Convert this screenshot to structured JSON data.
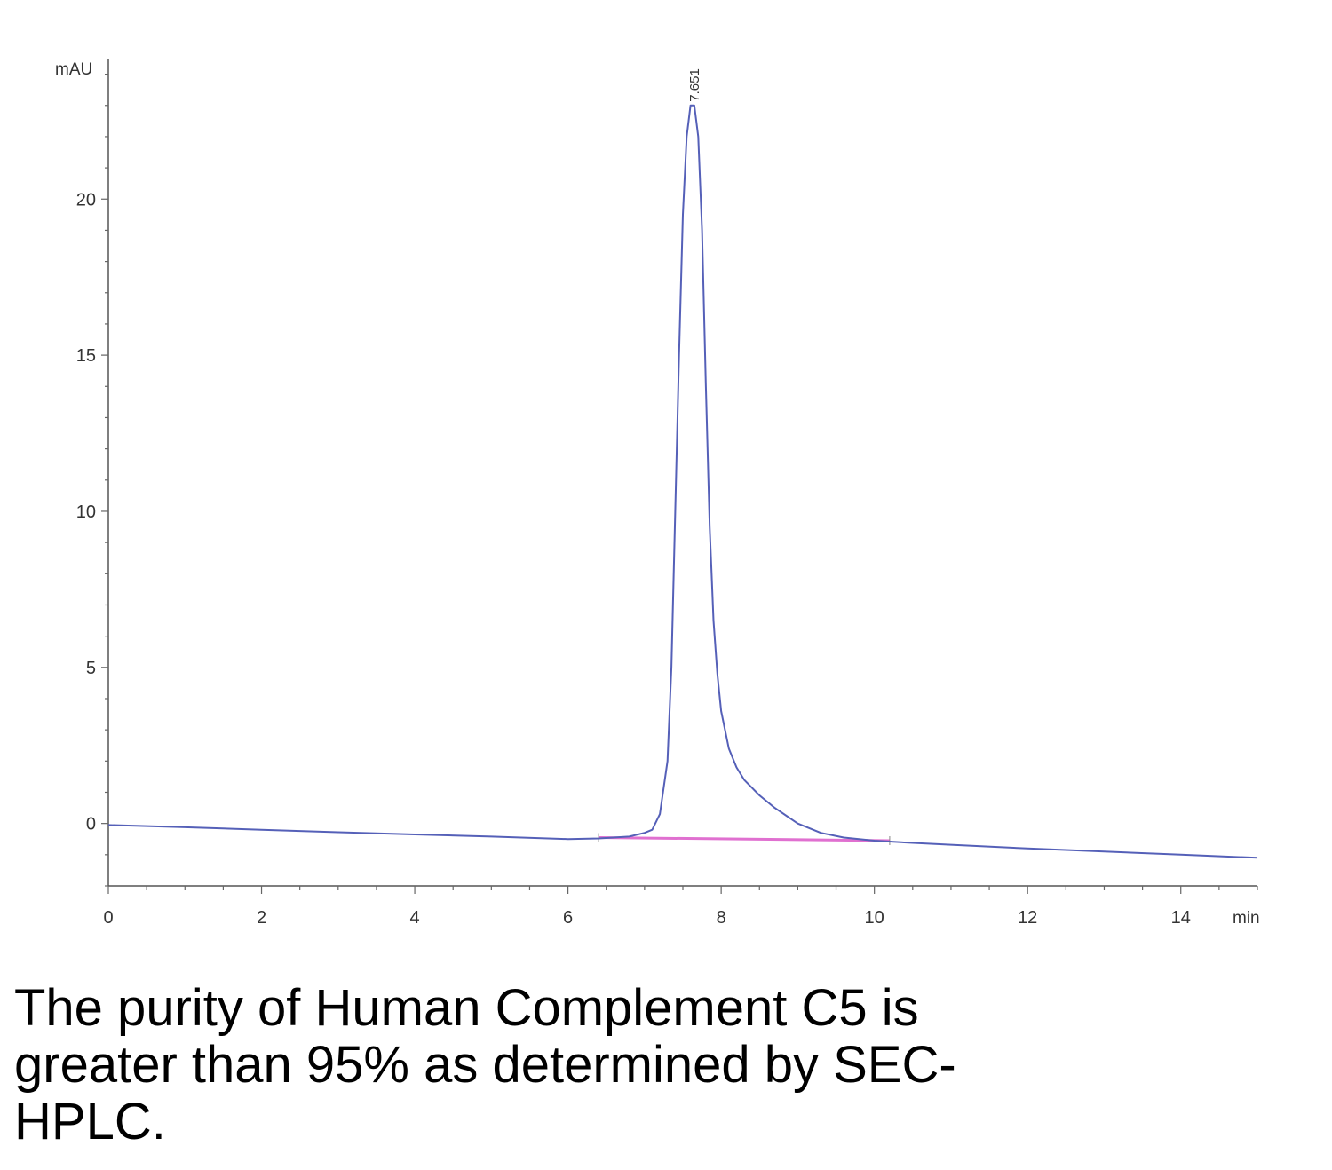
{
  "chart_data": {
    "type": "line",
    "title": "",
    "xlabel": "",
    "ylabel": "",
    "x_unit": "min",
    "y_unit": "mAU",
    "xlim": [
      0,
      15
    ],
    "ylim": [
      -2,
      24.5
    ],
    "x_ticks": [
      0,
      2,
      4,
      6,
      8,
      10,
      12,
      14
    ],
    "y_ticks": [
      0,
      5,
      10,
      15,
      20
    ],
    "grid": false,
    "peak_label": "7.651",
    "series": [
      {
        "color": "#5560b8",
        "x": [
          0,
          1,
          2,
          3,
          4,
          5,
          6,
          6.4,
          6.8,
          7.0,
          7.1,
          7.2,
          7.3,
          7.35,
          7.4,
          7.45,
          7.5,
          7.55,
          7.6,
          7.65,
          7.7,
          7.75,
          7.8,
          7.85,
          7.9,
          7.95,
          8.0,
          8.1,
          8.2,
          8.3,
          8.5,
          8.7,
          9.0,
          9.3,
          9.6,
          10.0,
          10.5,
          11,
          12,
          13,
          14,
          15
        ],
        "y": [
          -0.05,
          -0.12,
          -0.2,
          -0.28,
          -0.35,
          -0.42,
          -0.5,
          -0.48,
          -0.42,
          -0.3,
          -0.2,
          0.3,
          2.0,
          5.0,
          10.0,
          15.0,
          19.5,
          22.0,
          23.0,
          23.0,
          22.0,
          19.0,
          14.0,
          9.5,
          6.5,
          4.8,
          3.6,
          2.4,
          1.8,
          1.4,
          0.9,
          0.5,
          0.0,
          -0.3,
          -0.45,
          -0.55,
          -0.62,
          -0.68,
          -0.8,
          -0.9,
          -1.0,
          -1.1
        ]
      }
    ],
    "baseline": {
      "color": "#e070d0",
      "x": [
        6.4,
        10.2
      ],
      "y": [
        -0.45,
        -0.55
      ]
    }
  },
  "caption": "The purity of Human Complement C5 is greater than 95% as determined by SEC-HPLC."
}
